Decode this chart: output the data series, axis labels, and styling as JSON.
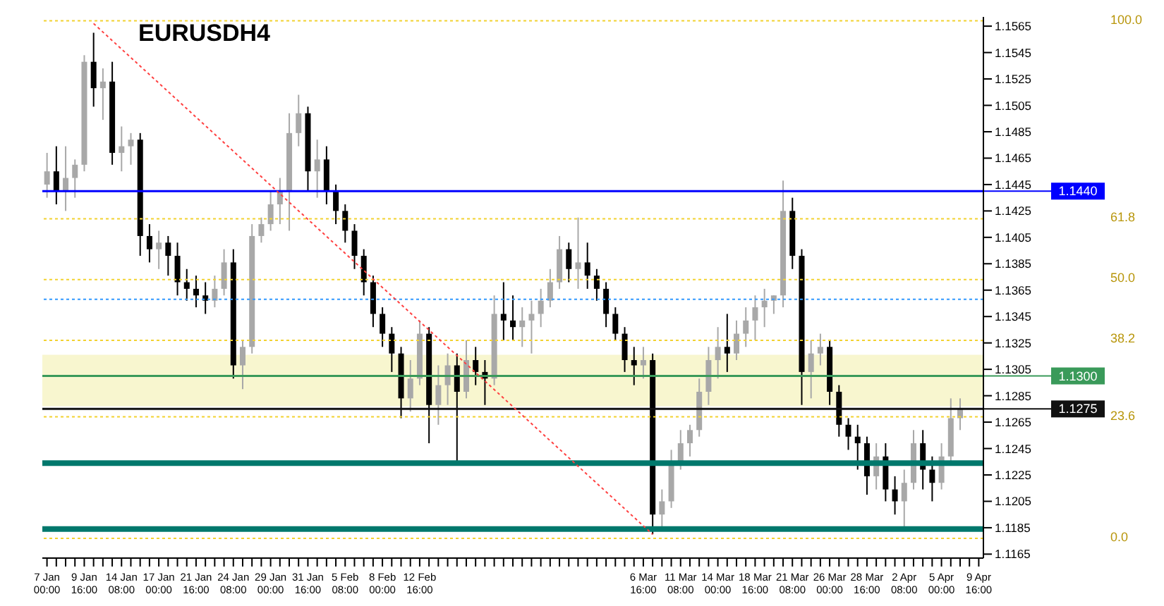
{
  "chart_data": {
    "type": "candlestick",
    "title": "EURUSDH4",
    "categories": [
      "7 Jan 00:00",
      null,
      null,
      null,
      "9 Jan 16:00",
      null,
      null,
      null,
      "14 Jan 08:00",
      null,
      null,
      null,
      "17 Jan 00:00",
      null,
      null,
      null,
      "21 Jan 16:00",
      null,
      null,
      null,
      "24 Jan 08:00",
      null,
      null,
      null,
      "29 Jan 00:00",
      null,
      null,
      null,
      "31 Jan 16:00",
      null,
      null,
      null,
      "5 Feb 08:00",
      null,
      null,
      null,
      "8 Feb 00:00",
      null,
      null,
      null,
      "12 Feb 16:00",
      null,
      null,
      null,
      null,
      null,
      null,
      null,
      null,
      null,
      null,
      null,
      null,
      null,
      null,
      null,
      null,
      null,
      null,
      null,
      null,
      null,
      null,
      null,
      "6 Mar 16:00",
      null,
      null,
      null,
      "11 Mar 08:00",
      null,
      null,
      null,
      "14 Mar 00:00",
      null,
      null,
      null,
      "18 Mar 16:00",
      null,
      null,
      null,
      "21 Mar 08:00",
      null,
      null,
      null,
      "26 Mar 00:00",
      null,
      null,
      null,
      "28 Mar 16:00",
      null,
      null,
      null,
      "2 Apr 08:00",
      null,
      null,
      null,
      "5 Apr 00:00",
      null,
      null,
      null,
      "9 Apr 16:00"
    ],
    "ohlc": [
      [
        1.1445,
        1.1469,
        1.1435,
        1.1455
      ],
      [
        1.1455,
        1.1474,
        1.143,
        1.144
      ],
      [
        1.144,
        1.1474,
        1.1425,
        1.145
      ],
      [
        1.145,
        1.1464,
        1.1435,
        1.146
      ],
      [
        1.146,
        1.1543,
        1.1455,
        1.1538
      ],
      [
        1.1538,
        1.156,
        1.1504,
        1.1518
      ],
      [
        1.1518,
        1.1533,
        1.1494,
        1.1523
      ],
      [
        1.1523,
        1.1538,
        1.146,
        1.1469
      ],
      [
        1.1469,
        1.1489,
        1.1455,
        1.1474
      ],
      [
        1.1474,
        1.1484,
        1.146,
        1.1479
      ],
      [
        1.1479,
        1.1484,
        1.1391,
        1.1406
      ],
      [
        1.1406,
        1.1415,
        1.1386,
        1.1396
      ],
      [
        1.1396,
        1.141,
        1.1381,
        1.1401
      ],
      [
        1.1401,
        1.1406,
        1.1376,
        1.1391
      ],
      [
        1.1391,
        1.1401,
        1.1361,
        1.1371
      ],
      [
        1.1371,
        1.1381,
        1.1357,
        1.1366
      ],
      [
        1.1366,
        1.1376,
        1.1352,
        1.1361
      ],
      [
        1.1361,
        1.1371,
        1.1347,
        1.1357
      ],
      [
        1.1357,
        1.1376,
        1.1352,
        1.1366
      ],
      [
        1.1366,
        1.1396,
        1.1361,
        1.1386
      ],
      [
        1.1386,
        1.1396,
        1.1298,
        1.1308
      ],
      [
        1.1308,
        1.1327,
        1.129,
        1.1322
      ],
      [
        1.1322,
        1.1415,
        1.1317,
        1.1406
      ],
      [
        1.1406,
        1.142,
        1.1401,
        1.1415
      ],
      [
        1.1415,
        1.144,
        1.141,
        1.143
      ],
      [
        1.143,
        1.145,
        1.1415,
        1.144
      ],
      [
        1.144,
        1.1499,
        1.141,
        1.1484
      ],
      [
        1.1484,
        1.1513,
        1.1474,
        1.1499
      ],
      [
        1.1499,
        1.1504,
        1.144,
        1.1455
      ],
      [
        1.1455,
        1.1479,
        1.1435,
        1.1464
      ],
      [
        1.1464,
        1.1474,
        1.143,
        1.144
      ],
      [
        1.144,
        1.1445,
        1.1415,
        1.1425
      ],
      [
        1.1425,
        1.143,
        1.1401,
        1.141
      ],
      [
        1.141,
        1.1415,
        1.1381,
        1.1391
      ],
      [
        1.1391,
        1.1396,
        1.1361,
        1.1371
      ],
      [
        1.1371,
        1.1376,
        1.1337,
        1.1347
      ],
      [
        1.1347,
        1.1352,
        1.1322,
        1.1332
      ],
      [
        1.1332,
        1.1337,
        1.1303,
        1.1317
      ],
      [
        1.1317,
        1.1322,
        1.1268,
        1.1283
      ],
      [
        1.1283,
        1.1312,
        1.1273,
        1.1298
      ],
      [
        1.1298,
        1.1342,
        1.1293,
        1.1332
      ],
      [
        1.1332,
        1.1337,
        1.1249,
        1.1278
      ],
      [
        1.1278,
        1.1308,
        1.1263,
        1.1293
      ],
      [
        1.1293,
        1.1317,
        1.1278,
        1.1308
      ],
      [
        1.1308,
        1.1317,
        1.1234,
        1.1288
      ],
      [
        1.1288,
        1.1327,
        1.1283,
        1.1312
      ],
      [
        1.1312,
        1.1322,
        1.1293,
        1.1303
      ],
      [
        1.1303,
        1.1312,
        1.1278,
        1.1298
      ],
      [
        1.1298,
        1.1361,
        1.1293,
        1.1347
      ],
      [
        1.1347,
        1.1371,
        1.1327,
        1.1342
      ],
      [
        1.1342,
        1.1361,
        1.1327,
        1.1337
      ],
      [
        1.1337,
        1.1352,
        1.1322,
        1.1342
      ],
      [
        1.1342,
        1.1357,
        1.1317,
        1.1347
      ],
      [
        1.1347,
        1.1366,
        1.1337,
        1.1357
      ],
      [
        1.1357,
        1.1381,
        1.1352,
        1.1371
      ],
      [
        1.1371,
        1.1406,
        1.1366,
        1.1396
      ],
      [
        1.1396,
        1.1401,
        1.1371,
        1.1381
      ],
      [
        1.1381,
        1.142,
        1.1366,
        1.1386
      ],
      [
        1.1386,
        1.1401,
        1.1366,
        1.1376
      ],
      [
        1.1376,
        1.1381,
        1.1357,
        1.1366
      ],
      [
        1.1366,
        1.1371,
        1.1337,
        1.1347
      ],
      [
        1.1347,
        1.1352,
        1.1327,
        1.1332
      ],
      [
        1.1332,
        1.1337,
        1.1303,
        1.1312
      ],
      [
        1.1312,
        1.1322,
        1.1293,
        1.1308
      ],
      [
        1.1308,
        1.1322,
        1.1298,
        1.1312
      ],
      [
        1.1312,
        1.1317,
        1.118,
        1.1195
      ],
      [
        1.1195,
        1.1214,
        1.1185,
        1.1205
      ],
      [
        1.1205,
        1.1244,
        1.12,
        1.1234
      ],
      [
        1.1234,
        1.1259,
        1.1229,
        1.1249
      ],
      [
        1.1249,
        1.1263,
        1.1239,
        1.1259
      ],
      [
        1.1259,
        1.1298,
        1.1254,
        1.1288
      ],
      [
        1.1288,
        1.1322,
        1.1278,
        1.1312
      ],
      [
        1.1312,
        1.1337,
        1.1298,
        1.1322
      ],
      [
        1.1322,
        1.1347,
        1.1303,
        1.1317
      ],
      [
        1.1317,
        1.1342,
        1.1312,
        1.1332
      ],
      [
        1.1332,
        1.1352,
        1.1322,
        1.1342
      ],
      [
        1.1342,
        1.1361,
        1.1327,
        1.1352
      ],
      [
        1.1352,
        1.1366,
        1.1337,
        1.1357
      ],
      [
        1.1357,
        1.1361,
        1.1347,
        1.1361
      ],
      [
        1.1361,
        1.1448,
        1.1352,
        1.1425
      ],
      [
        1.1425,
        1.1435,
        1.1381,
        1.1391
      ],
      [
        1.1391,
        1.1396,
        1.1278,
        1.1303
      ],
      [
        1.1303,
        1.1327,
        1.1283,
        1.1317
      ],
      [
        1.1317,
        1.1332,
        1.1308,
        1.1322
      ],
      [
        1.1322,
        1.1327,
        1.1278,
        1.1288
      ],
      [
        1.1288,
        1.1293,
        1.1254,
        1.1263
      ],
      [
        1.1263,
        1.1268,
        1.1244,
        1.1254
      ],
      [
        1.1254,
        1.1263,
        1.1229,
        1.1249
      ],
      [
        1.1249,
        1.1254,
        1.121,
        1.1224
      ],
      [
        1.1224,
        1.1249,
        1.1214,
        1.1239
      ],
      [
        1.1239,
        1.1249,
        1.1205,
        1.1214
      ],
      [
        1.1214,
        1.1224,
        1.1195,
        1.1205
      ],
      [
        1.1205,
        1.1229,
        1.1185,
        1.1219
      ],
      [
        1.1219,
        1.1259,
        1.1214,
        1.1249
      ],
      [
        1.1249,
        1.1259,
        1.1214,
        1.1229
      ],
      [
        1.1229,
        1.1239,
        1.1205,
        1.1219
      ],
      [
        1.1219,
        1.1249,
        1.1214,
        1.1239
      ],
      [
        1.1239,
        1.1283,
        1.1234,
        1.1268
      ],
      [
        1.1268,
        1.1283,
        1.1259,
        1.1275
      ],
      null,
      null
    ],
    "colors": [
      "#a8a8a8",
      "#000000",
      "#a8a8a8",
      "#a8a8a8",
      "#a8a8a8",
      "#000000",
      "#a8a8a8",
      "#000000",
      "#a8a8a8",
      "#a8a8a8",
      "#000000",
      "#000000",
      "#a8a8a8",
      "#000000",
      "#000000",
      "#000000",
      "#000000",
      "#000000",
      "#a8a8a8",
      "#a8a8a8",
      "#000000",
      "#a8a8a8",
      "#a8a8a8",
      "#a8a8a8",
      "#a8a8a8",
      "#a8a8a8",
      "#a8a8a8",
      "#a8a8a8",
      "#000000",
      "#a8a8a8",
      "#000000",
      "#000000",
      "#000000",
      "#000000",
      "#000000",
      "#000000",
      "#000000",
      "#000000",
      "#000000",
      "#a8a8a8",
      "#a8a8a8",
      "#000000",
      "#a8a8a8",
      "#a8a8a8",
      "#000000",
      "#a8a8a8",
      "#000000",
      "#000000",
      "#a8a8a8",
      "#000000",
      "#000000",
      "#a8a8a8",
      "#a8a8a8",
      "#a8a8a8",
      "#a8a8a8",
      "#a8a8a8",
      "#000000",
      "#a8a8a8",
      "#000000",
      "#000000",
      "#000000",
      "#000000",
      "#000000",
      "#000000",
      "#a8a8a8",
      "#000000",
      "#a8a8a8",
      "#a8a8a8",
      "#a8a8a8",
      "#a8a8a8",
      "#a8a8a8",
      "#a8a8a8",
      "#a8a8a8",
      "#000000",
      "#a8a8a8",
      "#a8a8a8",
      "#a8a8a8",
      "#a8a8a8",
      "#a8a8a8",
      "#a8a8a8",
      "#000000",
      "#000000",
      "#a8a8a8",
      "#a8a8a8",
      "#000000",
      "#000000",
      "#000000",
      "#000000",
      "#000000",
      "#a8a8a8",
      "#000000",
      "#000000",
      "#a8a8a8",
      "#a8a8a8",
      "#000000",
      "#000000",
      "#a8a8a8",
      "#a8a8a8",
      "#a8a8a8",
      null,
      null
    ],
    "annotations": [
      "100.0",
      "61.8",
      "50.0",
      "38.2",
      "23.6",
      "0.0"
    ],
    "series": [
      {
        "type": "line",
        "color": "#ff4040",
        "line_style": "dotted",
        "values": [
          null,
          null,
          null,
          null,
          null,
          1.1567,
          null,
          null,
          null,
          null,
          null,
          null,
          null,
          null,
          null,
          null,
          null,
          null,
          null,
          null,
          null,
          null,
          null,
          null,
          null,
          null,
          null,
          null,
          null,
          null,
          null,
          null,
          null,
          null,
          null,
          null,
          null,
          null,
          null,
          null,
          null,
          null,
          null,
          null,
          null,
          null,
          null,
          null,
          null,
          null,
          null,
          null,
          null,
          null,
          null,
          null,
          null,
          null,
          null,
          null,
          null,
          null,
          null,
          null,
          null,
          1.118,
          null,
          null,
          null,
          null,
          null,
          null,
          null,
          null,
          null,
          null,
          null,
          null,
          null,
          null,
          null,
          null,
          null,
          null,
          null,
          null,
          null,
          null,
          null,
          null,
          null,
          null,
          null,
          null,
          null,
          null,
          null,
          null,
          null,
          null,
          null
        ]
      }
    ],
    "ylim": [
      1.1162,
      1.1572
    ],
    "yticks": [
      1.1565,
      1.1545,
      1.1525,
      1.1505,
      1.1485,
      1.1465,
      1.1445,
      1.1425,
      1.1405,
      1.1385,
      1.1365,
      1.1345,
      1.1325,
      1.1305,
      1.1285,
      1.1265,
      1.1245,
      1.1225,
      1.1205,
      1.1185,
      1.1165
    ],
    "bands": [
      {
        "axis": "y",
        "from": 1.1277,
        "to": 1.1316,
        "color": "#f8f6cf"
      }
    ],
    "ref_lines": [
      {
        "axis": "y",
        "value": 1.1569,
        "color": "#f2d230",
        "line_style": "dotted"
      },
      {
        "axis": "y",
        "value": 1.1419,
        "color": "#f2d230",
        "line_style": "dotted"
      },
      {
        "axis": "y",
        "value": 1.1373,
        "color": "#f2d230",
        "line_style": "dotted"
      },
      {
        "axis": "y",
        "value": 1.1327,
        "color": "#f2d230",
        "line_style": "dotted"
      },
      {
        "axis": "y",
        "value": 1.1269,
        "color": "#f2d230",
        "line_style": "dotted"
      },
      {
        "axis": "y",
        "value": 1.1177,
        "color": "#f2d230",
        "line_style": "dotted"
      },
      {
        "axis": "y",
        "value": 1.1358,
        "color": "#3399ff",
        "line_style": "dotted"
      },
      {
        "axis": "y",
        "value": 1.144,
        "label": "1.1440",
        "color": "#0000ff",
        "line_style": "solid"
      },
      {
        "axis": "y",
        "value": 1.13,
        "label": "1.1300",
        "color": "#3a9a5a",
        "line_style": "solid"
      },
      {
        "axis": "y",
        "value": 1.1275,
        "label": "1.1275",
        "color": "#111111",
        "line_style": "solid"
      },
      {
        "axis": "y",
        "value": 1.1234,
        "color": "#00786c",
        "line_style": "solid"
      },
      {
        "axis": "y",
        "value": 1.1184,
        "color": "#00786c",
        "line_style": "solid"
      }
    ]
  }
}
